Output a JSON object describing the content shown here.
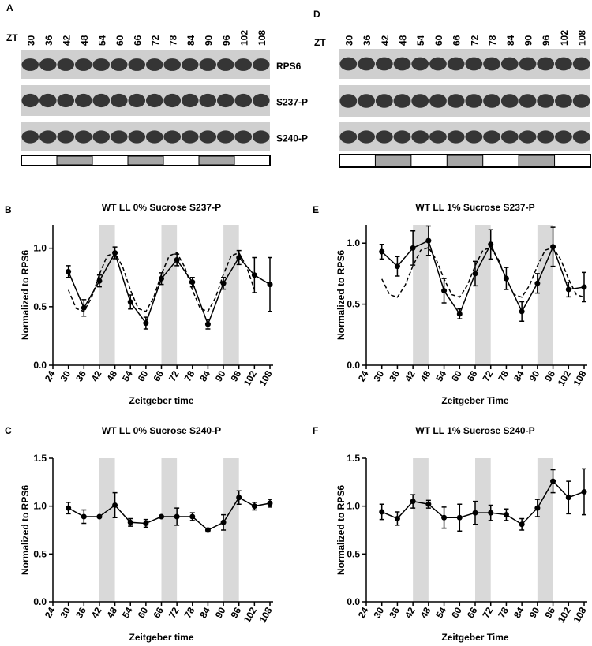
{
  "blots": [
    {
      "panel": "A",
      "axis_label": "ZT",
      "lanes": [
        "30",
        "36",
        "42",
        "48",
        "54",
        "60",
        "66",
        "72",
        "78",
        "84",
        "90",
        "96",
        "102",
        "108"
      ],
      "rows": [
        "RPS6",
        "S237-P",
        "S240-P"
      ]
    },
    {
      "panel": "D",
      "axis_label": "ZT",
      "lanes": [
        "30",
        "36",
        "42",
        "48",
        "54",
        "60",
        "66",
        "72",
        "78",
        "84",
        "90",
        "96",
        "102",
        "108"
      ]
    }
  ],
  "chart_data": [
    {
      "type": "line",
      "panel": "B",
      "title": "WT LL 0% Sucrose S237-P",
      "xlabel": "Zeitgeber time",
      "ylabel": "Normalized to RPS6",
      "x": [
        30,
        36,
        42,
        48,
        54,
        60,
        66,
        72,
        78,
        84,
        90,
        96,
        102,
        108
      ],
      "series": [
        {
          "color": "#000000",
          "values": [
            0.8,
            0.49,
            0.72,
            0.96,
            0.54,
            0.36,
            0.74,
            0.9,
            0.71,
            0.35,
            0.7,
            0.92,
            0.77,
            0.69
          ],
          "errors": [
            0.05,
            0.07,
            0.05,
            0.05,
            0.06,
            0.05,
            0.05,
            0.05,
            0.04,
            0.04,
            0.05,
            0.06,
            0.15,
            0.23
          ]
        }
      ],
      "fit": {
        "x": [
          30,
          33,
          36,
          39,
          42,
          45,
          48,
          51,
          54,
          57,
          60,
          63,
          66,
          69,
          72,
          75,
          78,
          81,
          84,
          87,
          90,
          93,
          96,
          99,
          102
        ],
        "values": [
          0.643,
          0.485,
          0.459,
          0.58,
          0.777,
          0.935,
          0.961,
          0.84,
          0.643,
          0.485,
          0.459,
          0.58,
          0.777,
          0.935,
          0.961,
          0.84,
          0.643,
          0.485,
          0.459,
          0.58,
          0.777,
          0.935,
          0.961,
          0.84,
          0.643
        ]
      },
      "shaded": [
        [
          42,
          48
        ],
        [
          66,
          72
        ],
        [
          90,
          96
        ]
      ],
      "xlim": [
        24,
        108
      ],
      "xticks": [
        24,
        30,
        36,
        42,
        48,
        54,
        60,
        66,
        72,
        78,
        84,
        90,
        96,
        102,
        108
      ],
      "ylim": [
        0,
        1.2
      ],
      "yticks": [
        {
          "value": 0,
          "label": "0.0"
        },
        {
          "value": 0.5,
          "label": "0.5"
        },
        {
          "value": 1,
          "label": "1.0"
        }
      ]
    },
    {
      "type": "line",
      "panel": "E",
      "title": "WT LL 1% Sucrose S237-P",
      "xlabel": "Zeitgeber Time",
      "ylabel": "Normalized to RPS6",
      "x": [
        30,
        36,
        42,
        48,
        54,
        60,
        66,
        72,
        78,
        84,
        90,
        96,
        102,
        108
      ],
      "series": [
        {
          "color": "#000000",
          "values": [
            0.93,
            0.81,
            0.96,
            1.02,
            0.61,
            0.42,
            0.75,
            0.99,
            0.71,
            0.44,
            0.67,
            0.97,
            0.62,
            0.64
          ],
          "errors": [
            0.06,
            0.08,
            0.14,
            0.12,
            0.1,
            0.04,
            0.1,
            0.12,
            0.09,
            0.08,
            0.08,
            0.16,
            0.06,
            0.12
          ]
        }
      ],
      "fit": {
        "x": [
          30,
          33,
          36,
          39,
          42,
          45,
          48,
          51,
          54,
          57,
          60,
          63,
          66,
          69,
          72,
          75,
          78,
          81,
          84,
          87,
          90,
          93,
          96,
          99,
          102,
          105,
          108
        ],
        "values": [
          0.706,
          0.578,
          0.557,
          0.655,
          0.814,
          0.942,
          0.963,
          0.865,
          0.706,
          0.578,
          0.557,
          0.655,
          0.814,
          0.942,
          0.963,
          0.865,
          0.706,
          0.578,
          0.557,
          0.655,
          0.814,
          0.942,
          0.963,
          0.865,
          0.706,
          0.578,
          0.557
        ]
      },
      "shaded": [
        [
          42,
          48
        ],
        [
          66,
          72
        ],
        [
          90,
          96
        ]
      ],
      "xlim": [
        24,
        108
      ],
      "xticks": [
        24,
        30,
        36,
        42,
        48,
        54,
        60,
        66,
        72,
        78,
        84,
        90,
        96,
        102,
        108
      ],
      "ylim": [
        0,
        1.15
      ],
      "yticks": [
        {
          "value": 0,
          "label": "0.0"
        },
        {
          "value": 0.5,
          "label": "0.5"
        },
        {
          "value": 1,
          "label": "1.0"
        }
      ]
    },
    {
      "type": "line",
      "panel": "C",
      "title": "WT LL 0% Sucrose S240-P",
      "xlabel": "Zeitgeber time",
      "ylabel": "Normalized to RPS6",
      "x": [
        30,
        36,
        42,
        48,
        54,
        60,
        66,
        72,
        78,
        84,
        90,
        96,
        102,
        108
      ],
      "series": [
        {
          "color": "#000000",
          "values": [
            0.98,
            0.89,
            0.89,
            1.01,
            0.83,
            0.82,
            0.89,
            0.89,
            0.89,
            0.75,
            0.83,
            1.09,
            1.0,
            1.03
          ],
          "errors": [
            0.06,
            0.07,
            0.01,
            0.13,
            0.04,
            0.04,
            0.01,
            0.09,
            0.04,
            0.02,
            0.08,
            0.07,
            0.04,
            0.04
          ]
        }
      ],
      "shaded": [
        [
          42,
          48
        ],
        [
          66,
          72
        ],
        [
          90,
          96
        ]
      ],
      "xlim": [
        24,
        108
      ],
      "xticks": [
        24,
        30,
        36,
        42,
        48,
        54,
        60,
        66,
        72,
        78,
        84,
        90,
        96,
        102,
        108
      ],
      "ylim": [
        0,
        1.5
      ],
      "yticks": [
        {
          "value": 0,
          "label": "0.0"
        },
        {
          "value": 0.5,
          "label": "0.5"
        },
        {
          "value": 1,
          "label": "1.0"
        },
        {
          "value": 1.5,
          "label": "1.5"
        }
      ]
    },
    {
      "type": "line",
      "panel": "F",
      "title": "WT LL 1% Sucrose S240-P",
      "xlabel": "Zeitgeber Time",
      "ylabel": "Normalized to RPS6",
      "x": [
        30,
        36,
        42,
        48,
        54,
        60,
        66,
        72,
        78,
        84,
        90,
        96,
        102,
        108
      ],
      "series": [
        {
          "color": "#000000",
          "values": [
            0.94,
            0.87,
            1.05,
            1.02,
            0.88,
            0.88,
            0.93,
            0.93,
            0.91,
            0.81,
            0.98,
            1.26,
            1.09,
            1.15
          ],
          "errors": [
            0.08,
            0.07,
            0.07,
            0.04,
            0.11,
            0.14,
            0.12,
            0.08,
            0.06,
            0.06,
            0.09,
            0.12,
            0.17,
            0.24
          ]
        }
      ],
      "shaded": [
        [
          42,
          48
        ],
        [
          66,
          72
        ],
        [
          90,
          96
        ]
      ],
      "xlim": [
        24,
        108
      ],
      "xticks": [
        24,
        30,
        36,
        42,
        48,
        54,
        60,
        66,
        72,
        78,
        84,
        90,
        96,
        102,
        108
      ],
      "ylim": [
        0,
        1.5
      ],
      "yticks": [
        {
          "value": 0,
          "label": "0.0"
        },
        {
          "value": 0.5,
          "label": "0.5"
        },
        {
          "value": 1,
          "label": "1.0"
        },
        {
          "value": 1.5,
          "label": "1.5"
        }
      ]
    }
  ]
}
